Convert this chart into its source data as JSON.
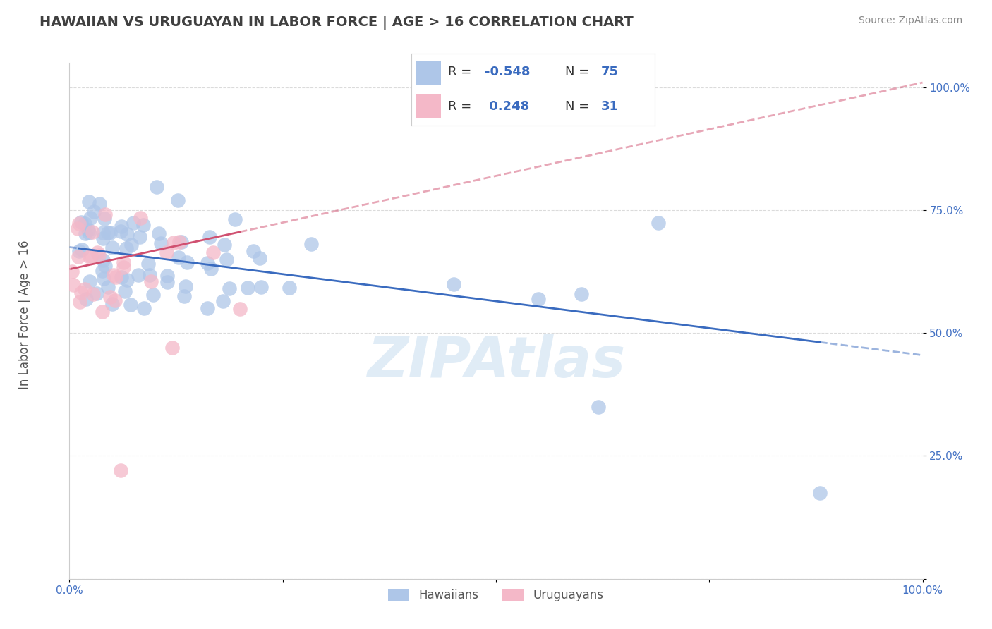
{
  "title": "HAWAIIAN VS URUGUAYAN IN LABOR FORCE | AGE > 16 CORRELATION CHART",
  "source_text": "Source: ZipAtlas.com",
  "ylabel": "In Labor Force | Age > 16",
  "xlim": [
    0.0,
    1.0
  ],
  "ylim": [
    0.0,
    1.05
  ],
  "hawaiian_R": -0.548,
  "hawaiian_N": 75,
  "uruguayan_R": 0.248,
  "uruguayan_N": 31,
  "hawaiian_color": "#aec6e8",
  "hawaiian_line_color": "#3a6bbf",
  "uruguayan_color": "#f4b8c8",
  "uruguayan_line_color": "#d05070",
  "background_color": "#ffffff",
  "grid_color": "#cccccc",
  "watermark": "ZIPAtlas",
  "watermark_color": "#c8ddf0",
  "tick_label_color": "#4472c4",
  "title_color": "#404040",
  "source_color": "#888888",
  "hawaiian_slope": -0.22,
  "hawaiian_intercept": 0.675,
  "uruguayan_slope": 0.38,
  "uruguayan_intercept": 0.63,
  "seed": 99
}
